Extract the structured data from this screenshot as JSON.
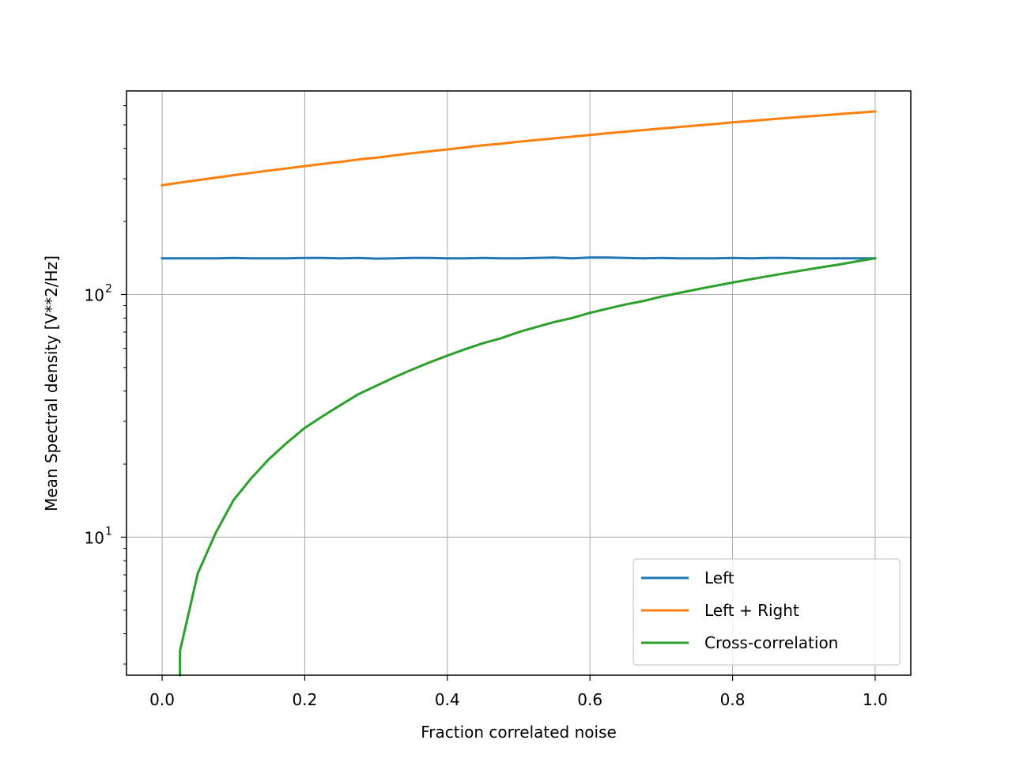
{
  "chart_data": {
    "type": "line",
    "xlabel": "Fraction correlated noise",
    "ylabel": "Mean Spectral density [V**2/Hz]",
    "xlim": [
      -0.05,
      1.05
    ],
    "ylim": [
      2.7,
      690
    ],
    "yscale": "log",
    "grid": true,
    "legend_position": "lower-right",
    "x_ticks": [
      "0.0",
      "0.2",
      "0.4",
      "0.6",
      "0.8",
      "1.0"
    ],
    "x_tick_values": [
      0.0,
      0.2,
      0.4,
      0.6,
      0.8,
      1.0
    ],
    "y_ticks": [
      {
        "value": 100,
        "base": "10",
        "exp": "2"
      },
      {
        "value": 10,
        "base": "10",
        "exp": "1"
      }
    ],
    "x": [
      0.0,
      0.025,
      0.05,
      0.075,
      0.1,
      0.125,
      0.15,
      0.175,
      0.2,
      0.225,
      0.25,
      0.275,
      0.3,
      0.325,
      0.35,
      0.375,
      0.4,
      0.425,
      0.45,
      0.475,
      0.5,
      0.525,
      0.55,
      0.575,
      0.6,
      0.625,
      0.65,
      0.675,
      0.7,
      0.725,
      0.75,
      0.775,
      0.8,
      0.825,
      0.85,
      0.875,
      0.9,
      0.925,
      0.95,
      0.975,
      1.0
    ],
    "series": [
      {
        "name": "Left",
        "color": "#1f77b4",
        "values": [
          141,
          141,
          141,
          141,
          141.5,
          141,
          141,
          141,
          141.5,
          141.5,
          141,
          141.5,
          140.5,
          141,
          141.5,
          141.5,
          141,
          141,
          141.5,
          141,
          141,
          141.5,
          142,
          141,
          142,
          142,
          141.5,
          141,
          141.5,
          141,
          141,
          141,
          141.5,
          141,
          141.5,
          141.5,
          141,
          141,
          141,
          141,
          141
        ]
      },
      {
        "name": "Left + Right",
        "color": "#ff7f0e",
        "values": [
          282,
          289,
          296,
          303,
          310,
          317,
          324,
          331,
          338,
          345,
          352,
          360,
          366,
          374,
          382,
          389,
          396,
          404,
          412,
          418,
          426,
          433,
          440,
          447,
          454,
          462,
          469,
          476,
          483,
          490,
          497,
          504,
          512,
          519,
          526,
          533,
          540,
          547,
          554,
          561,
          568
        ]
      },
      {
        "name": "Cross-correlation",
        "color": "#2ca02c",
        "values": [
          null,
          3.4,
          7.1,
          10.4,
          14.2,
          17.5,
          21.0,
          24.5,
          28.2,
          31.5,
          35.0,
          38.8,
          42.0,
          45.5,
          49.0,
          52.5,
          56.0,
          59.5,
          63.0,
          66.0,
          70.0,
          73.5,
          77.0,
          80.0,
          84.0,
          87.5,
          91.0,
          94.0,
          98.0,
          101.5,
          105.0,
          108.5,
          112.0,
          115.5,
          119.0,
          122.5,
          126.0,
          129.5,
          133.0,
          137.0,
          141.0
        ]
      }
    ]
  }
}
